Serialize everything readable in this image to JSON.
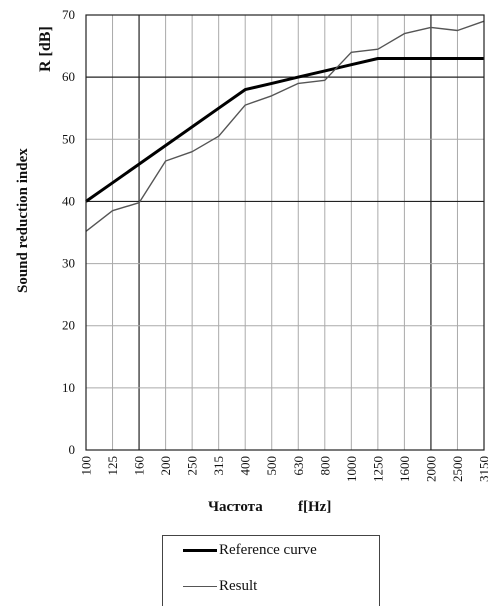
{
  "chart_data": {
    "type": "line",
    "ylabel_main": "Sound reduction index",
    "ylabel_symbol": "R [dB]",
    "xlabel_main": "Частота",
    "xlabel_symbol": "f[Hz]",
    "categories": [
      "100",
      "125",
      "160",
      "200",
      "250",
      "315",
      "400",
      "500",
      "630",
      "800",
      "1000",
      "1250",
      "1600",
      "2000",
      "2500",
      "3150"
    ],
    "ylim": [
      0,
      70
    ],
    "yticks": [
      0,
      10,
      20,
      30,
      40,
      50,
      60,
      70
    ],
    "grid": true,
    "legend_position": "bottom",
    "series": [
      {
        "name": "Reference curve",
        "color": "#000000",
        "values": [
          40,
          43,
          46,
          49,
          52,
          55,
          58,
          59,
          60,
          61,
          62,
          63,
          63,
          63,
          63,
          63
        ]
      },
      {
        "name": "Result",
        "color": "#555555",
        "values": [
          35.2,
          38.5,
          39.8,
          46.5,
          48,
          50.5,
          55.5,
          57,
          59,
          59.5,
          64,
          64.5,
          67,
          68,
          67.5,
          69
        ]
      }
    ]
  }
}
